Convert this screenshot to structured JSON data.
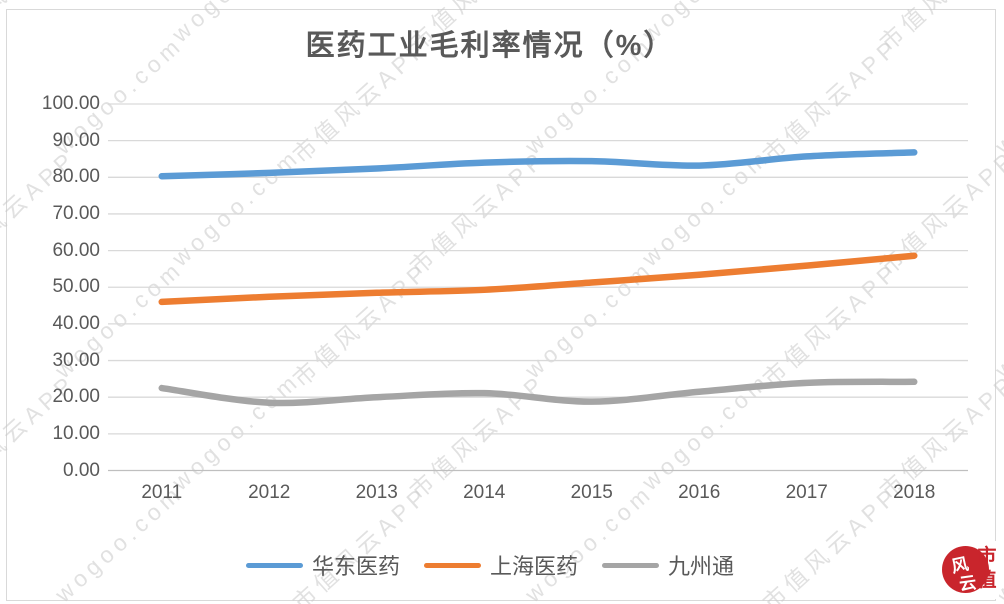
{
  "title": "医药工业毛利率情况（%）",
  "watermark": {
    "texts": [
      "市值风云APP",
      "wogoo.com"
    ]
  },
  "logo": {
    "script_chars": [
      "风",
      "云"
    ],
    "label_chars": [
      "市",
      "值"
    ],
    "color": "#c9252c"
  },
  "chart_data": {
    "type": "line",
    "title": "医药工业毛利率情况（%）",
    "categories": [
      "2011",
      "2012",
      "2013",
      "2014",
      "2015",
      "2016",
      "2017",
      "2018"
    ],
    "series": [
      {
        "name": "华东医药",
        "color": "#5B9BD5",
        "values": [
          80.3,
          81.2,
          82.4,
          84.0,
          84.4,
          83.2,
          85.7,
          86.8
        ]
      },
      {
        "name": "上海医药",
        "color": "#ED7D31",
        "values": [
          46.0,
          47.4,
          48.5,
          49.3,
          51.3,
          53.4,
          55.9,
          58.6
        ]
      },
      {
        "name": "九州通",
        "color": "#A5A5A5",
        "values": [
          22.5,
          18.5,
          20.0,
          21.1,
          18.8,
          21.5,
          23.9,
          24.2
        ]
      }
    ],
    "xlabel": "",
    "ylabel": "",
    "ylim": [
      0,
      100
    ],
    "y_tick_values": [
      100,
      90,
      80,
      70,
      60,
      50,
      40,
      30,
      20,
      10,
      0
    ],
    "y_tick_labels": [
      "100.00",
      "90.00",
      "80.00",
      "70.00",
      "60.00",
      "50.00",
      "40.00",
      "30.00",
      "20.00",
      "10.00",
      "0.00"
    ],
    "grid": true,
    "gridline_color": "#D9D9D9",
    "axis_line_color": "#BFBFBF",
    "axis_text_color": "#595959",
    "legend_position": "bottom"
  }
}
